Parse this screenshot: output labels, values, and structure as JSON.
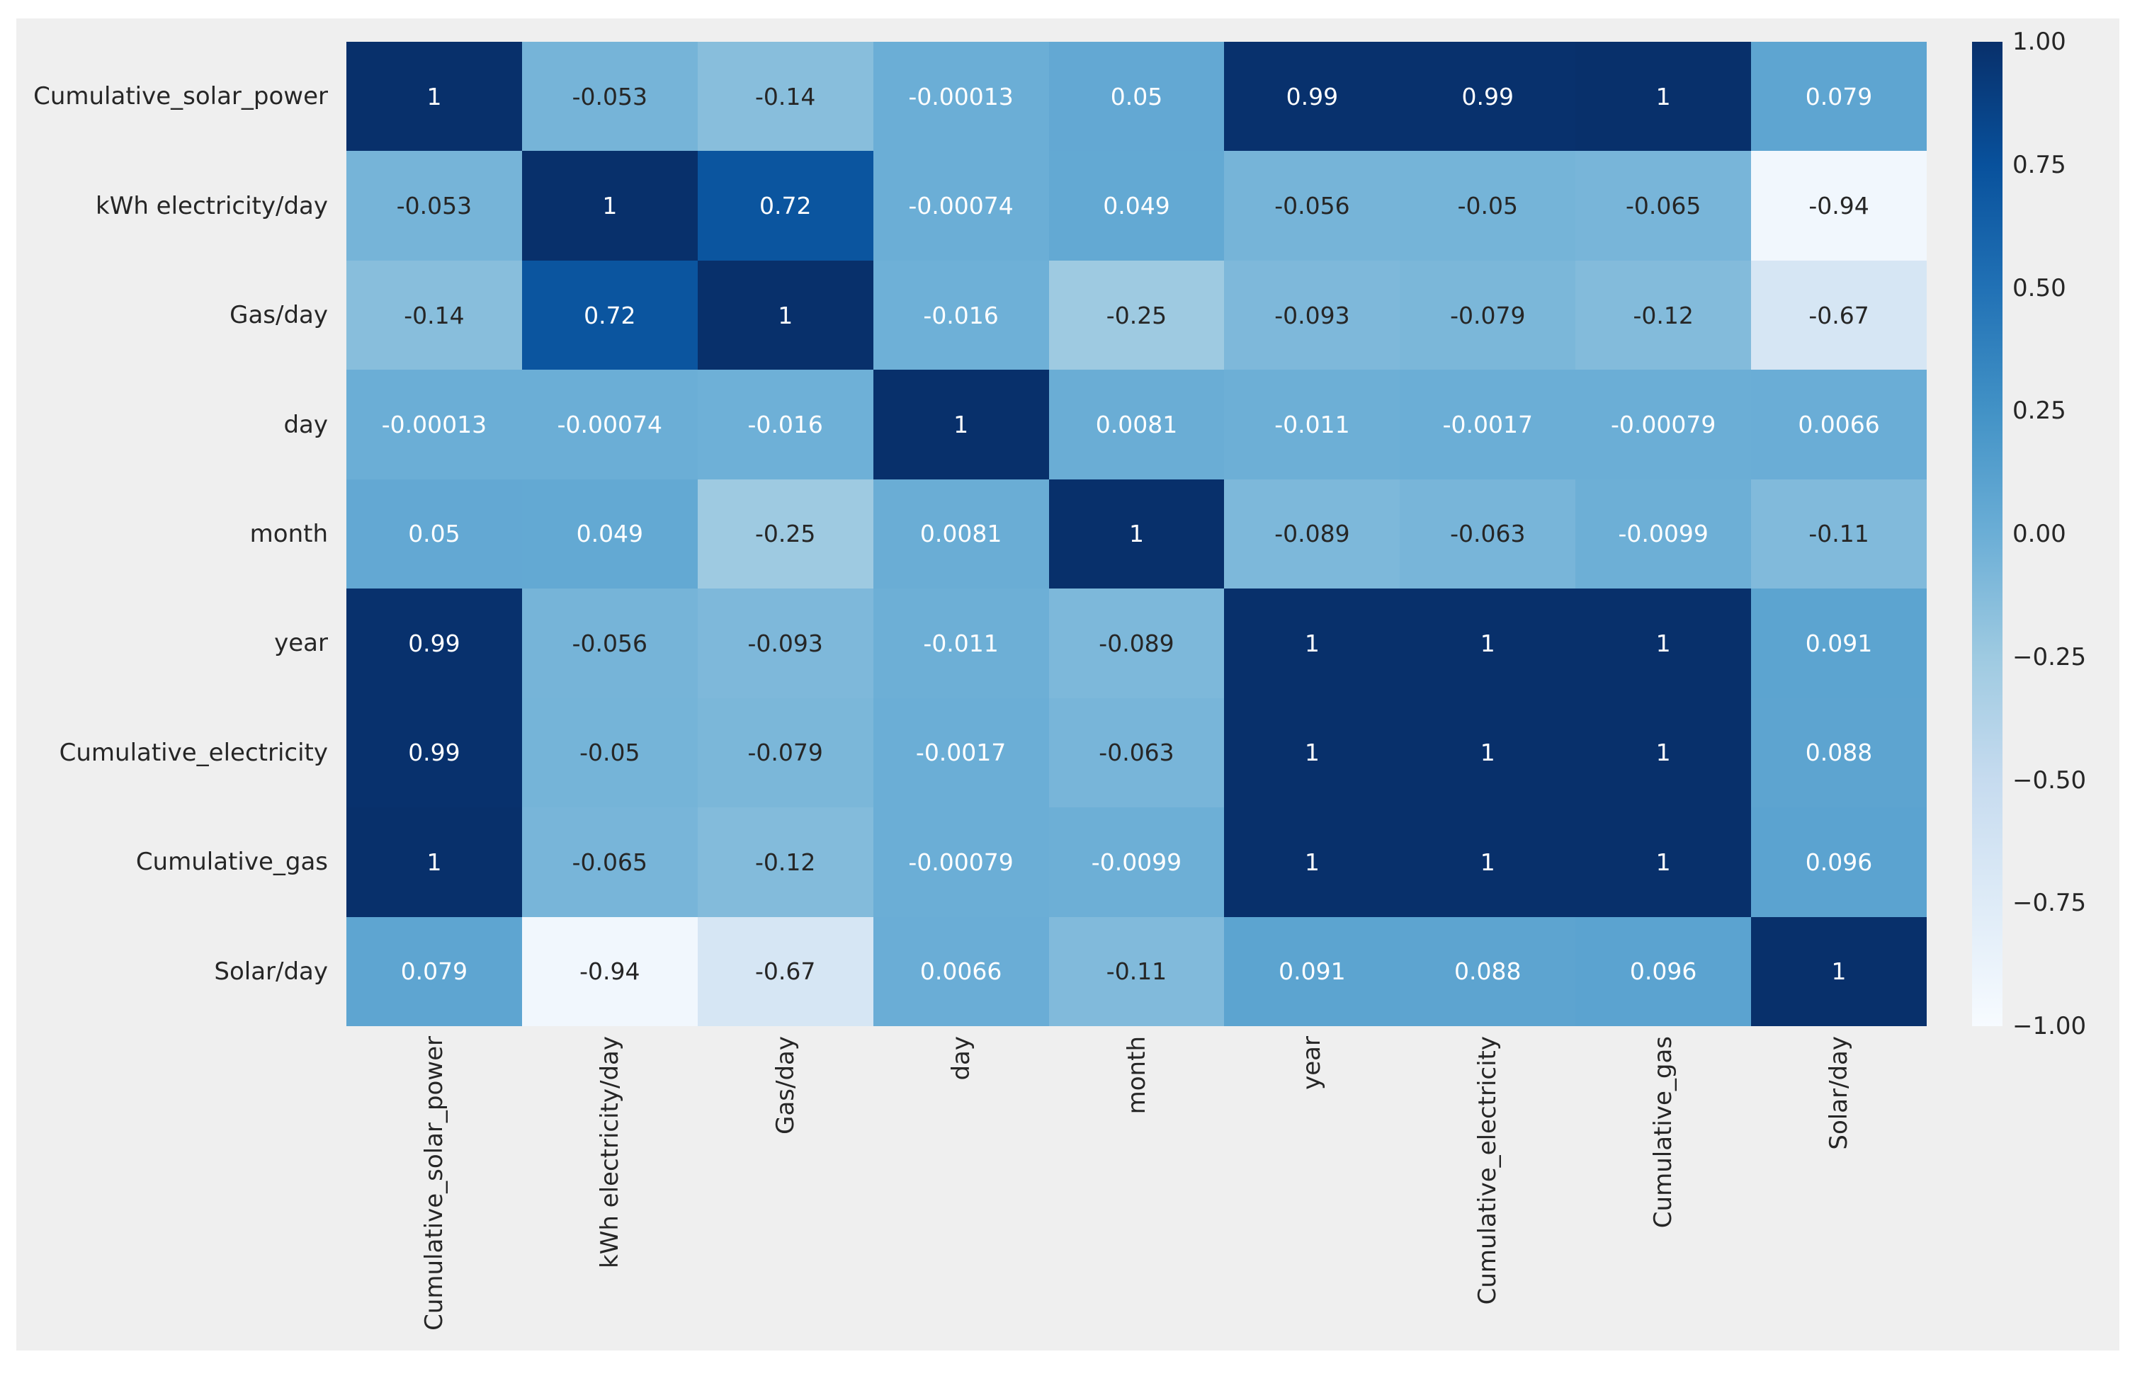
{
  "chart_data": {
    "type": "heatmap",
    "title": "",
    "xlabel": "",
    "ylabel": "",
    "grid": false,
    "legend_position": "colorbar-right",
    "colormap": "Blues",
    "vmin": -1,
    "vmax": 1,
    "categories": [
      "Cumulative_solar_power",
      "kWh electricity/day",
      "Gas/day",
      "day",
      "month",
      "year",
      "Cumulative_electricity",
      "Cumulative_gas",
      "Solar/day"
    ],
    "matrix": [
      [
        1,
        -0.053,
        -0.14,
        -0.00013,
        0.05,
        0.99,
        0.99,
        1,
        0.079
      ],
      [
        -0.053,
        1,
        0.72,
        -0.00074,
        0.049,
        -0.056,
        -0.05,
        -0.065,
        -0.94
      ],
      [
        -0.14,
        0.72,
        1,
        -0.016,
        -0.25,
        -0.093,
        -0.079,
        -0.12,
        -0.67
      ],
      [
        -0.00013,
        -0.00074,
        -0.016,
        1,
        0.0081,
        -0.011,
        -0.0017,
        -0.00079,
        0.0066
      ],
      [
        0.05,
        0.049,
        -0.25,
        0.0081,
        1,
        -0.089,
        -0.063,
        -0.0099,
        -0.11
      ],
      [
        0.99,
        -0.056,
        -0.093,
        -0.011,
        -0.089,
        1,
        1,
        1,
        0.091
      ],
      [
        0.99,
        -0.05,
        -0.079,
        -0.0017,
        -0.063,
        1,
        1,
        1,
        0.088
      ],
      [
        1,
        -0.065,
        -0.12,
        -0.00079,
        -0.0099,
        1,
        1,
        1,
        0.096
      ],
      [
        0.079,
        -0.94,
        -0.67,
        0.0066,
        -0.11,
        0.091,
        0.088,
        0.096,
        1
      ]
    ],
    "cell_text": [
      [
        "1",
        "-0.053",
        "-0.14",
        "-0.00013",
        "0.05",
        "0.99",
        "0.99",
        "1",
        "0.079"
      ],
      [
        "-0.053",
        "1",
        "0.72",
        "-0.00074",
        "0.049",
        "-0.056",
        "-0.05",
        "-0.065",
        "-0.94"
      ],
      [
        "-0.14",
        "0.72",
        "1",
        "-0.016",
        "-0.25",
        "-0.093",
        "-0.079",
        "-0.12",
        "-0.67"
      ],
      [
        "-0.00013",
        "-0.00074",
        "-0.016",
        "1",
        "0.0081",
        "-0.011",
        "-0.0017",
        "-0.00079",
        "0.0066"
      ],
      [
        "0.05",
        "0.049",
        "-0.25",
        "0.0081",
        "1",
        "-0.089",
        "-0.063",
        "-0.0099",
        "-0.11"
      ],
      [
        "0.99",
        "-0.056",
        "-0.093",
        "-0.011",
        "-0.089",
        "1",
        "1",
        "1",
        "0.091"
      ],
      [
        "0.99",
        "-0.05",
        "-0.079",
        "-0.0017",
        "-0.063",
        "1",
        "1",
        "1",
        "0.088"
      ],
      [
        "1",
        "-0.065",
        "-0.12",
        "-0.00079",
        "-0.0099",
        "1",
        "1",
        "1",
        "0.096"
      ],
      [
        "0.079",
        "-0.94",
        "-0.67",
        "0.0066",
        "-0.11",
        "0.091",
        "0.088",
        "0.096",
        "1"
      ]
    ],
    "colorbar_ticks": [
      "1.00",
      "0.75",
      "0.50",
      "0.25",
      "0.00",
      "−0.25",
      "−0.50",
      "−0.75",
      "−1.00"
    ],
    "colors": {
      "figure_background": "#efefef",
      "page_background": "#ffffff",
      "tick_label_color": "#262626",
      "annotation_dark": "#262626",
      "annotation_light": "#ffffff",
      "colormap_anchors_low_to_high": [
        "#f7fbff",
        "#deebf7",
        "#c6dbef",
        "#9ecae1",
        "#6baed6",
        "#4292c6",
        "#2171b5",
        "#08519c",
        "#08306b"
      ]
    }
  }
}
